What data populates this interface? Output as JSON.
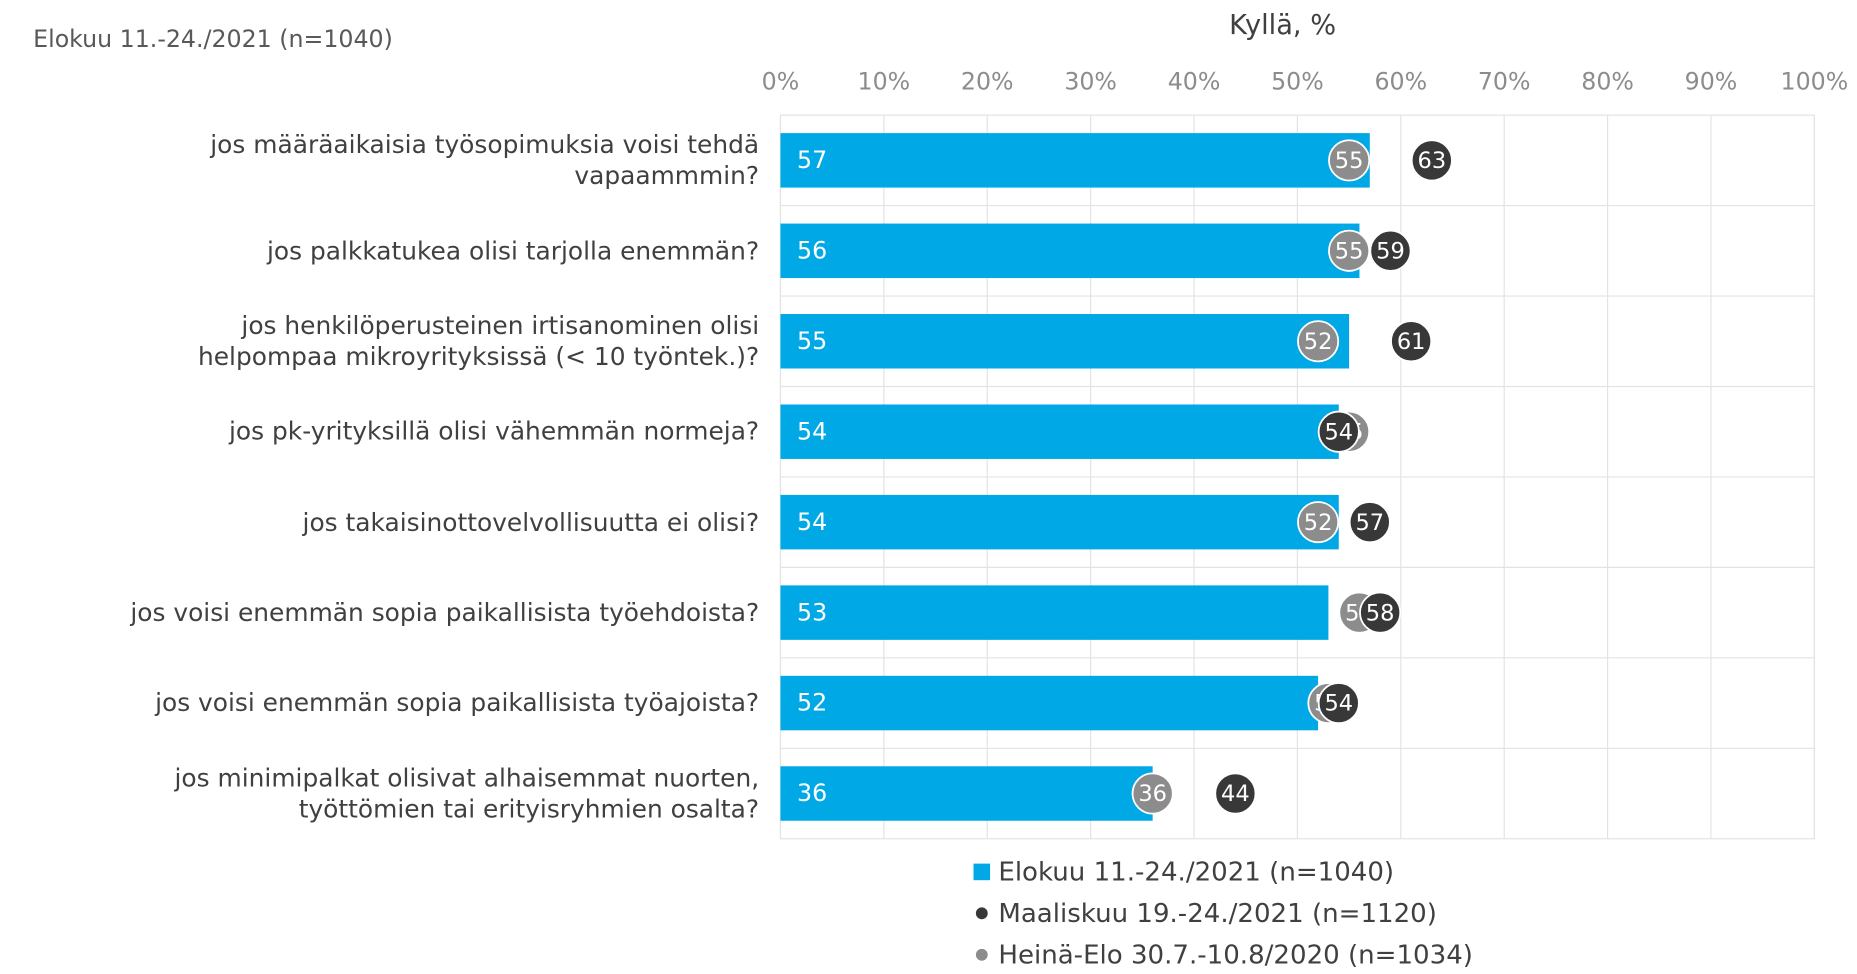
{
  "chart_data": {
    "type": "bar",
    "subtitle": "Elokuu 11.-24./2021 (n=1040)",
    "x_axis_title": "Kyllä, %",
    "categories": [
      "jos määräaikaisia työsopimuksia voisi tehdä\nvapaammmin?",
      "jos palkkatukea olisi tarjolla enemmän?",
      "jos henkilöperusteinen irtisanominen olisi\nhelpompaa mikroyrityksissä (< 10 työntek.)?",
      "jos pk-yrityksillä olisi vähemmän normeja?",
      "jos takaisinottovelvollisuutta ei olisi?",
      "jos voisi enemmän sopia paikallisista työehdoista?",
      "jos voisi enemmän sopia paikallisista työajoista?",
      "jos minimipalkat olisivat alhaisemmat nuorten,\ntyöttömien tai erityisryhmien osalta?"
    ],
    "series": [
      {
        "name": "Elokuu 11.-24./2021 (n=1040)",
        "type": "bar",
        "color": "#00a9e6",
        "values": [
          57,
          56,
          55,
          54,
          54,
          53,
          52,
          36
        ]
      },
      {
        "name": "Maaliskuu 19.-24./2021 (n=1120)",
        "type": "dot",
        "color": "#383838",
        "values": [
          63,
          59,
          61,
          54,
          57,
          58,
          54,
          44
        ]
      },
      {
        "name": "Heinä-Elo 30.7.-10.8/2020 (n=1034)",
        "type": "dot",
        "color": "#8c8c8c",
        "values": [
          55,
          55,
          52,
          55,
          52,
          56,
          53,
          36
        ]
      }
    ],
    "xlim": [
      0,
      100
    ],
    "xticks": [
      {
        "value": 0,
        "label": "0%"
      },
      {
        "value": 10,
        "label": "10%"
      },
      {
        "value": 20,
        "label": "20%"
      },
      {
        "value": 30,
        "label": "30%"
      },
      {
        "value": 40,
        "label": "40%"
      },
      {
        "value": 50,
        "label": "50%"
      },
      {
        "value": 60,
        "label": "60%"
      },
      {
        "value": 70,
        "label": "70%"
      },
      {
        "value": 80,
        "label": "80%"
      },
      {
        "value": 90,
        "label": "90%"
      },
      {
        "value": 100,
        "label": "100%"
      }
    ],
    "grid": true
  }
}
